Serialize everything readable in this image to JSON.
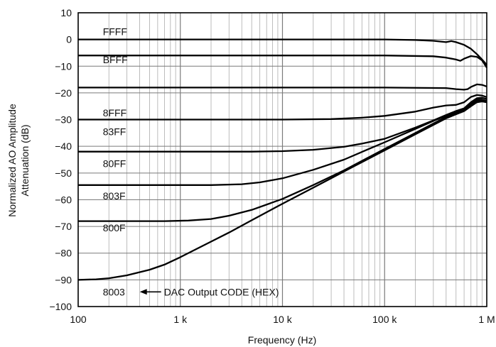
{
  "chart_data": {
    "type": "line",
    "xlabel": "Frequency (Hz)",
    "ylabel_lines": [
      "Normalized AO Amplitude",
      "Attenuation (dB)"
    ],
    "x_scale": "log",
    "xlim": [
      100,
      1000000
    ],
    "ylim": [
      -100,
      10
    ],
    "grid": true,
    "x_ticks": [
      {
        "value": 100,
        "label": "100"
      },
      {
        "value": 1000,
        "label": "1 k"
      },
      {
        "value": 10000,
        "label": "10 k"
      },
      {
        "value": 100000,
        "label": "100 k"
      },
      {
        "value": 1000000,
        "label": "1 M"
      }
    ],
    "y_ticks": [
      {
        "value": 10,
        "label": "10"
      },
      {
        "value": 0,
        "label": "0"
      },
      {
        "value": -10,
        "label": "−10"
      },
      {
        "value": -20,
        "label": "−20"
      },
      {
        "value": -30,
        "label": "−30"
      },
      {
        "value": -40,
        "label": "−40"
      },
      {
        "value": -50,
        "label": "−50"
      },
      {
        "value": -60,
        "label": "−60"
      },
      {
        "value": -70,
        "label": "−70"
      },
      {
        "value": -80,
        "label": "−80"
      },
      {
        "value": -90,
        "label": "−90"
      },
      {
        "value": -100,
        "label": "−100"
      }
    ],
    "series": [
      {
        "name": "FFFF",
        "label_at": [
          180,
          3
        ],
        "points": [
          [
            100,
            0
          ],
          [
            10000,
            0
          ],
          [
            100000,
            0
          ],
          [
            200000,
            -0.2
          ],
          [
            300000,
            -0.5
          ],
          [
            400000,
            -1
          ],
          [
            450000,
            -0.6
          ],
          [
            500000,
            -1
          ],
          [
            600000,
            -2
          ],
          [
            700000,
            -3.5
          ],
          [
            800000,
            -5.5
          ],
          [
            900000,
            -7.5
          ],
          [
            1000000,
            -9.5
          ]
        ]
      },
      {
        "name": "BFFF",
        "label_at": [
          180,
          -7.5
        ],
        "points": [
          [
            100,
            -6
          ],
          [
            10000,
            -6
          ],
          [
            100000,
            -6
          ],
          [
            300000,
            -6.3
          ],
          [
            400000,
            -6.8
          ],
          [
            500000,
            -7.5
          ],
          [
            550000,
            -8
          ],
          [
            600000,
            -7.2
          ],
          [
            700000,
            -6.2
          ],
          [
            800000,
            -6.5
          ],
          [
            900000,
            -7.8
          ],
          [
            1000000,
            -10.5
          ]
        ]
      },
      {
        "name": "8FFF",
        "label_at": [
          180,
          -27.5
        ],
        "points": [
          [
            100,
            -18
          ],
          [
            10000,
            -18
          ],
          [
            100000,
            -18
          ],
          [
            400000,
            -18.2
          ],
          [
            500000,
            -18.6
          ],
          [
            600000,
            -18.8
          ],
          [
            650000,
            -18.6
          ],
          [
            700000,
            -17.8
          ],
          [
            800000,
            -16.8
          ],
          [
            900000,
            -17
          ],
          [
            1000000,
            -17.6
          ]
        ]
      },
      {
        "name": "83FF",
        "label_at": [
          180,
          -34.5
        ],
        "points": [
          [
            100,
            -30
          ],
          [
            10000,
            -30
          ],
          [
            30000,
            -29.8
          ],
          [
            60000,
            -29.3
          ],
          [
            100000,
            -28.6
          ],
          [
            200000,
            -27
          ],
          [
            300000,
            -25.5
          ],
          [
            400000,
            -24.7
          ],
          [
            500000,
            -24.5
          ],
          [
            600000,
            -23.5
          ],
          [
            700000,
            -21.5
          ],
          [
            800000,
            -20.8
          ],
          [
            900000,
            -21
          ],
          [
            1000000,
            -21.6
          ]
        ]
      },
      {
        "name": "80FF",
        "label_at": [
          180,
          -46.5
        ],
        "points": [
          [
            100,
            -42
          ],
          [
            5000,
            -42
          ],
          [
            10000,
            -41.8
          ],
          [
            20000,
            -41.3
          ],
          [
            40000,
            -40.2
          ],
          [
            60000,
            -39
          ],
          [
            100000,
            -37.2
          ],
          [
            200000,
            -33
          ],
          [
            300000,
            -30.3
          ],
          [
            400000,
            -28.3
          ],
          [
            500000,
            -26.8
          ],
          [
            600000,
            -25.8
          ],
          [
            700000,
            -23.5
          ],
          [
            800000,
            -22
          ],
          [
            900000,
            -21.8
          ],
          [
            1000000,
            -22.3
          ]
        ]
      },
      {
        "name": "803F",
        "label_at": [
          180,
          -58.5
        ],
        "points": [
          [
            100,
            -54.5
          ],
          [
            2000,
            -54.5
          ],
          [
            4000,
            -54.2
          ],
          [
            6000,
            -53.5
          ],
          [
            10000,
            -52
          ],
          [
            20000,
            -48.8
          ],
          [
            40000,
            -45
          ],
          [
            70000,
            -41
          ],
          [
            100000,
            -38.5
          ],
          [
            200000,
            -33.5
          ],
          [
            300000,
            -30.5
          ],
          [
            400000,
            -28.5
          ],
          [
            500000,
            -27
          ],
          [
            600000,
            -26
          ],
          [
            700000,
            -24
          ],
          [
            800000,
            -22.5
          ],
          [
            900000,
            -22.5
          ],
          [
            1000000,
            -23
          ]
        ]
      },
      {
        "name": "800F",
        "label_at": [
          180,
          -70.5
        ],
        "points": [
          [
            100,
            -68
          ],
          [
            700,
            -68
          ],
          [
            1200,
            -67.8
          ],
          [
            2000,
            -67.2
          ],
          [
            3000,
            -66
          ],
          [
            5000,
            -63.8
          ],
          [
            10000,
            -59.7
          ],
          [
            20000,
            -54.5
          ],
          [
            40000,
            -49
          ],
          [
            100000,
            -41
          ],
          [
            200000,
            -35
          ],
          [
            300000,
            -31.5
          ],
          [
            400000,
            -29
          ],
          [
            500000,
            -27.5
          ],
          [
            600000,
            -26.5
          ],
          [
            700000,
            -24.5
          ],
          [
            800000,
            -23
          ],
          [
            900000,
            -22.8
          ],
          [
            1000000,
            -23.2
          ]
        ]
      },
      {
        "name": "8003",
        "label_at": [
          180,
          -94.5
        ],
        "points": [
          [
            100,
            -90
          ],
          [
            150,
            -89.8
          ],
          [
            200,
            -89.4
          ],
          [
            300,
            -88.3
          ],
          [
            500,
            -86.2
          ],
          [
            700,
            -84.3
          ],
          [
            1000,
            -81.5
          ],
          [
            2000,
            -75.7
          ],
          [
            3000,
            -72.3
          ],
          [
            5000,
            -67.7
          ],
          [
            10000,
            -61.5
          ],
          [
            20000,
            -55.5
          ],
          [
            50000,
            -47.5
          ],
          [
            100000,
            -41.5
          ],
          [
            200000,
            -35.5
          ],
          [
            300000,
            -32
          ],
          [
            400000,
            -29.5
          ],
          [
            500000,
            -28
          ],
          [
            600000,
            -26.8
          ],
          [
            700000,
            -25
          ],
          [
            800000,
            -23.5
          ],
          [
            900000,
            -23.2
          ],
          [
            1000000,
            -23.5
          ]
        ]
      }
    ],
    "annotation": {
      "text": "DAC Output CODE (HEX)",
      "arrow_to": "8003"
    }
  }
}
